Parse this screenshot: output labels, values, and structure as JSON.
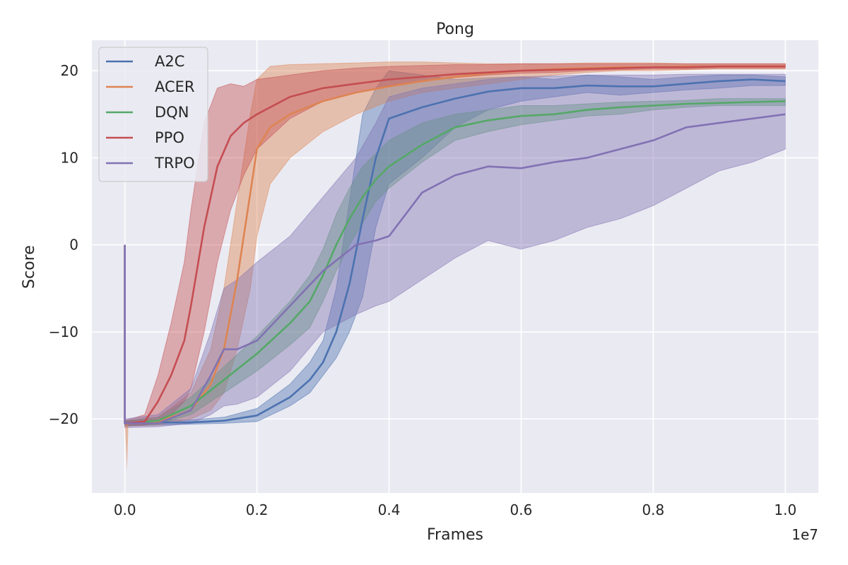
{
  "chart_data": {
    "type": "line",
    "title": "Pong",
    "xlabel": "Frames",
    "ylabel": "Score",
    "x_offset_label": "1e7",
    "xlim": [
      -0.05,
      1.05
    ],
    "ylim": [
      -28.5,
      23.5
    ],
    "x_ticks": [
      0.0,
      0.2,
      0.4,
      0.6,
      0.8,
      1.0
    ],
    "x_tick_labels": [
      "0.0",
      "0.2",
      "0.4",
      "0.6",
      "0.8",
      "1.0"
    ],
    "y_ticks": [
      -20,
      -10,
      0,
      10,
      20
    ],
    "y_tick_labels": [
      "−20",
      "−10",
      "0",
      "10",
      "20"
    ],
    "grid": true,
    "legend_position": "top-left",
    "x_units_note": "x values in units of 1e7 frames",
    "series": [
      {
        "name": "A2C",
        "color": "#4c72b0",
        "x": [
          0.0,
          0.05,
          0.1,
          0.15,
          0.2,
          0.25,
          0.28,
          0.3,
          0.32,
          0.34,
          0.36,
          0.38,
          0.4,
          0.45,
          0.5,
          0.55,
          0.6,
          0.65,
          0.7,
          0.75,
          0.8,
          0.85,
          0.9,
          0.95,
          1.0
        ],
        "mean": [
          -20.5,
          -20.4,
          -20.4,
          -20.2,
          -19.6,
          -17.5,
          -15.5,
          -13.5,
          -10.0,
          -4.5,
          3.0,
          10.0,
          14.5,
          15.8,
          16.8,
          17.6,
          18.0,
          18.0,
          18.3,
          18.2,
          18.2,
          18.5,
          18.8,
          19.0,
          18.8
        ],
        "lower": [
          -20.8,
          -20.7,
          -20.6,
          -20.5,
          -20.3,
          -18.5,
          -17.0,
          -15.0,
          -13.0,
          -10.0,
          -6.0,
          2.0,
          7.0,
          10.0,
          13.5,
          15.5,
          16.5,
          17.0,
          17.5,
          17.2,
          17.5,
          17.8,
          18.0,
          18.3,
          18.3
        ],
        "upper": [
          -20.2,
          -20.1,
          -20.1,
          -19.8,
          -18.8,
          -16.0,
          -13.5,
          -11.0,
          -5.0,
          5.0,
          15.0,
          18.0,
          20.0,
          19.5,
          19.0,
          19.2,
          19.3,
          19.0,
          19.5,
          19.3,
          19.0,
          19.3,
          19.5,
          19.5,
          19.3
        ]
      },
      {
        "name": "ACER",
        "color": "#dd8452",
        "x": [
          0.0,
          0.05,
          0.1,
          0.13,
          0.15,
          0.17,
          0.19,
          0.2,
          0.22,
          0.25,
          0.3,
          0.35,
          0.4,
          0.45,
          0.5,
          0.55,
          0.6,
          0.65,
          0.7,
          0.75,
          0.8,
          0.85,
          0.9,
          0.95,
          1.0
        ],
        "mean": [
          -20.5,
          -20.3,
          -19.0,
          -16.0,
          -12.0,
          -4.0,
          6.0,
          11.0,
          13.5,
          15.0,
          16.5,
          17.5,
          18.2,
          18.8,
          19.3,
          19.7,
          20.0,
          20.2,
          20.3,
          20.4,
          20.4,
          20.5,
          20.5,
          20.5,
          20.5
        ],
        "lower": [
          -20.8,
          -20.7,
          -20.0,
          -19.0,
          -17.0,
          -12.0,
          -5.0,
          1.0,
          7.0,
          10.0,
          13.0,
          15.0,
          16.5,
          17.5,
          18.0,
          18.5,
          19.0,
          19.5,
          19.8,
          20.0,
          20.0,
          20.1,
          20.2,
          20.2,
          20.2
        ],
        "upper": [
          -20.2,
          -19.8,
          -17.0,
          -12.0,
          -5.0,
          5.0,
          15.0,
          19.0,
          20.5,
          20.7,
          20.8,
          20.9,
          21.0,
          21.0,
          20.9,
          20.8,
          20.8,
          20.8,
          20.9,
          20.9,
          20.9,
          20.8,
          20.8,
          20.8,
          20.8
        ]
      },
      {
        "name": "DQN",
        "color": "#55a868",
        "x": [
          0.0,
          0.05,
          0.1,
          0.15,
          0.2,
          0.25,
          0.28,
          0.3,
          0.32,
          0.34,
          0.36,
          0.38,
          0.4,
          0.45,
          0.5,
          0.55,
          0.6,
          0.65,
          0.7,
          0.75,
          0.8,
          0.85,
          0.9,
          0.95,
          1.0
        ],
        "mean": [
          -20.5,
          -20.2,
          -18.5,
          -15.5,
          -12.5,
          -9.0,
          -6.5,
          -3.5,
          0.0,
          3.0,
          5.5,
          7.5,
          9.0,
          11.5,
          13.5,
          14.3,
          14.8,
          15.0,
          15.5,
          15.8,
          16.0,
          16.2,
          16.3,
          16.4,
          16.5
        ],
        "lower": [
          -20.8,
          -20.6,
          -19.5,
          -17.0,
          -14.5,
          -11.5,
          -9.5,
          -6.5,
          -3.0,
          0.0,
          2.5,
          5.0,
          6.5,
          9.5,
          12.0,
          13.0,
          13.8,
          14.3,
          14.8,
          15.0,
          15.5,
          15.8,
          16.0,
          16.0,
          16.0
        ],
        "upper": [
          -20.2,
          -19.8,
          -17.5,
          -14.0,
          -10.5,
          -6.5,
          -3.5,
          -0.5,
          3.5,
          6.5,
          9.0,
          10.5,
          12.0,
          14.0,
          15.0,
          15.5,
          16.0,
          16.0,
          16.2,
          16.4,
          16.5,
          16.6,
          16.8,
          16.8,
          16.8
        ]
      },
      {
        "name": "PPO",
        "color": "#c44e52",
        "x": [
          0.0,
          0.03,
          0.05,
          0.07,
          0.09,
          0.1,
          0.12,
          0.14,
          0.16,
          0.18,
          0.2,
          0.25,
          0.3,
          0.35,
          0.4,
          0.45,
          0.5,
          0.55,
          0.6,
          0.65,
          0.7,
          0.75,
          0.8,
          0.85,
          0.9,
          0.95,
          1.0
        ],
        "mean": [
          -20.5,
          -20.3,
          -18.0,
          -15.0,
          -11.0,
          -7.0,
          2.0,
          9.0,
          12.5,
          14.0,
          15.0,
          17.0,
          18.0,
          18.5,
          19.0,
          19.3,
          19.6,
          19.8,
          20.0,
          20.1,
          20.2,
          20.3,
          20.4,
          20.4,
          20.5,
          20.5,
          20.5
        ],
        "lower": [
          -20.8,
          -20.7,
          -20.3,
          -19.5,
          -18.0,
          -16.5,
          -10.0,
          -2.0,
          4.0,
          8.0,
          11.0,
          14.5,
          16.5,
          17.5,
          18.3,
          18.8,
          19.2,
          19.5,
          19.7,
          19.8,
          20.0,
          20.1,
          20.2,
          20.2,
          20.3,
          20.3,
          20.3
        ],
        "upper": [
          -20.2,
          -19.5,
          -15.0,
          -9.0,
          -2.0,
          4.0,
          14.0,
          18.0,
          18.5,
          18.2,
          19.0,
          19.5,
          20.0,
          20.3,
          20.5,
          20.6,
          20.7,
          20.7,
          20.8,
          20.8,
          20.8,
          20.8,
          20.8,
          20.8,
          20.8,
          20.8,
          20.8
        ]
      },
      {
        "name": "TRPO",
        "color": "#8172b3",
        "x": [
          0.0,
          0.05,
          0.1,
          0.13,
          0.15,
          0.17,
          0.2,
          0.25,
          0.3,
          0.35,
          0.38,
          0.4,
          0.45,
          0.5,
          0.55,
          0.6,
          0.65,
          0.7,
          0.75,
          0.8,
          0.85,
          0.9,
          0.95,
          1.0
        ],
        "mean": [
          -20.5,
          -20.5,
          -19.0,
          -15.0,
          -12.0,
          -12.0,
          -11.0,
          -7.0,
          -3.0,
          0.0,
          0.5,
          1.0,
          6.0,
          8.0,
          9.0,
          8.8,
          9.5,
          10.0,
          11.0,
          12.0,
          13.5,
          14.0,
          14.5,
          15.0
        ],
        "lower": [
          -21.0,
          -20.9,
          -20.5,
          -19.5,
          -18.5,
          -18.3,
          -17.5,
          -14.5,
          -10.0,
          -8.0,
          -7.0,
          -6.5,
          -4.0,
          -1.5,
          0.5,
          -0.5,
          0.5,
          2.0,
          3.0,
          4.5,
          6.5,
          8.5,
          9.5,
          11.0
        ],
        "upper": [
          -20.0,
          -19.5,
          -16.5,
          -10.0,
          -5.0,
          -4.0,
          -2.0,
          1.0,
          5.5,
          10.0,
          14.0,
          17.0,
          18.0,
          18.5,
          19.0,
          19.3,
          19.4,
          19.5,
          19.5,
          19.5,
          19.6,
          19.6,
          19.6,
          19.6
        ]
      }
    ],
    "startup_spike": {
      "note": "vertical line at x=0 from y=0 down to about -20.5 for each series; ACER band extends to about -26",
      "x": 0.0,
      "y_top": 0.0,
      "y_bottom": -20.5,
      "acer_band_low": -26.0
    }
  }
}
